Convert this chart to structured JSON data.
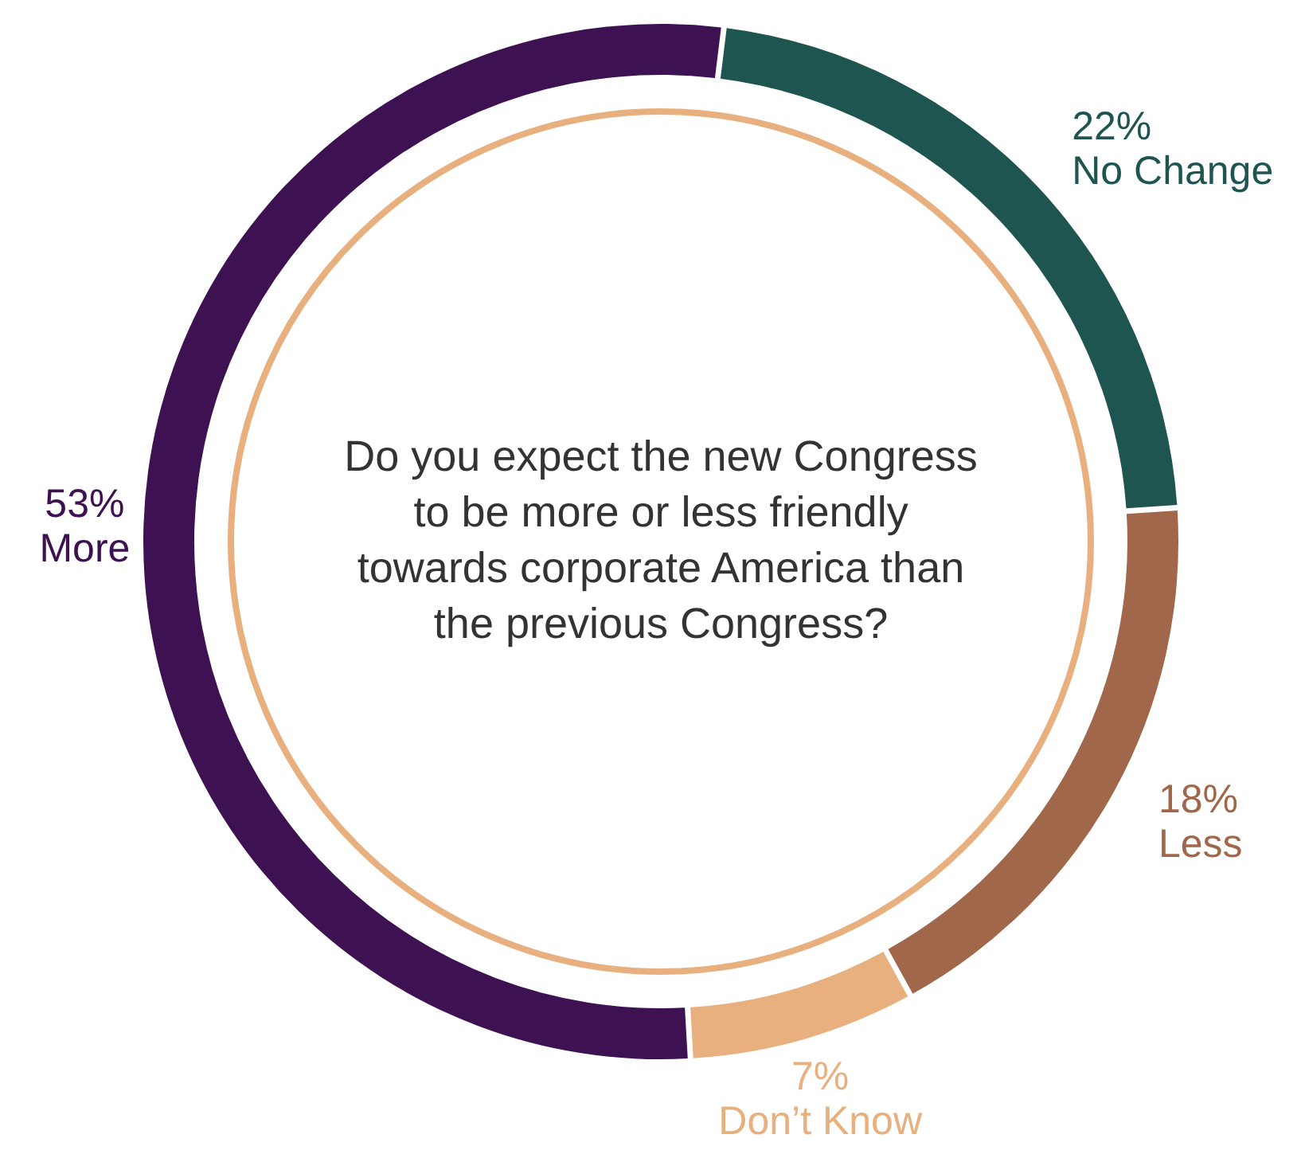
{
  "chart_data": {
    "type": "donut",
    "title": "Do you expect the new Congress to be more or less friendly towards corporate America than the previous Congress?",
    "categories": [
      "No Change",
      "Less",
      "Don’t Know",
      "More"
    ],
    "values": [
      22,
      18,
      7,
      53
    ],
    "value_labels": [
      "22%",
      "18%",
      "7%",
      "53%"
    ],
    "colors": [
      "#1f5550",
      "#a0674a",
      "#e8b07e",
      "#3d1152"
    ],
    "legend": false
  }
}
